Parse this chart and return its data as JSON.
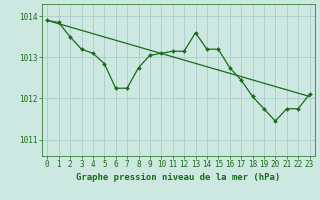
{
  "title": "Graphe pression niveau de la mer (hPa)",
  "bg_color": "#cce8e0",
  "grid_color": "#aacccc",
  "line_color": "#1a6b1a",
  "ylim": [
    1010.6,
    1014.3
  ],
  "xlim": [
    -0.5,
    23.5
  ],
  "yticks": [
    1011,
    1012,
    1013,
    1014
  ],
  "xticks": [
    0,
    1,
    2,
    3,
    4,
    5,
    6,
    7,
    8,
    9,
    10,
    11,
    12,
    13,
    14,
    15,
    16,
    17,
    18,
    19,
    20,
    21,
    22,
    23
  ],
  "series1": [
    1013.9,
    1013.85,
    1013.5,
    1013.2,
    1013.1,
    1012.85,
    1012.25,
    1012.25,
    1012.75,
    1013.05,
    1013.1,
    1013.15,
    1013.15,
    1013.6,
    1013.2,
    1013.2,
    1012.75,
    1012.45,
    1012.05,
    1011.75,
    1011.45,
    1011.75,
    1011.75,
    1012.1
  ],
  "series2_x": [
    0,
    23
  ],
  "series2_y": [
    1013.9,
    1012.05
  ],
  "tick_fontsize": 5.5,
  "label_fontsize": 6.5
}
